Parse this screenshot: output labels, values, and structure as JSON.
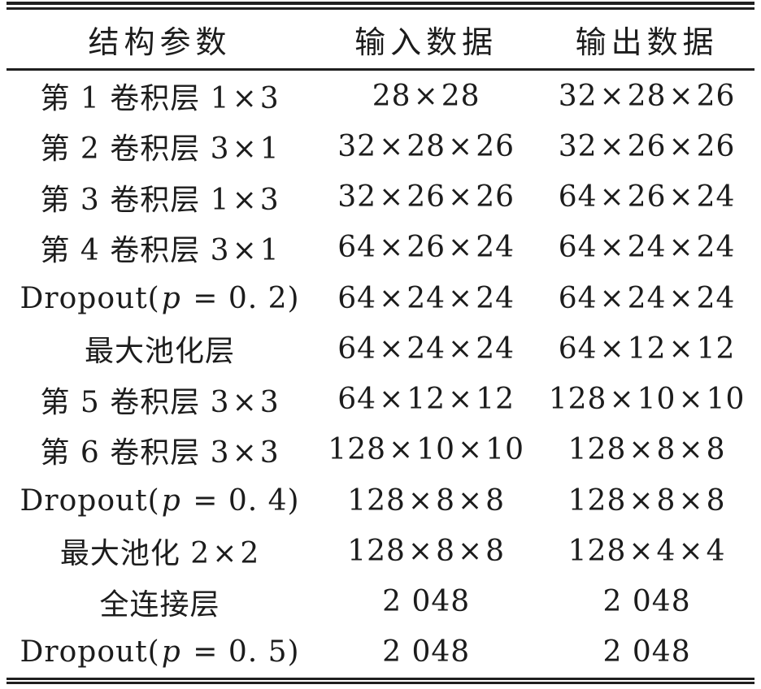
{
  "table": {
    "header": {
      "structure": "结构参数",
      "input": "输入数据",
      "output": "输出数据"
    },
    "rows": [
      {
        "layer": "第 1 卷积层 1×3",
        "input": "28×28",
        "output": "32×28×26"
      },
      {
        "layer": "第 2 卷积层 3×1",
        "input": "32×28×26",
        "output": "32×26×26"
      },
      {
        "layer": "第 3 卷积层 1×3",
        "input": "32×26×26",
        "output": "64×26×24"
      },
      {
        "layer": "第 4 卷积层 3×1",
        "input": "64×26×24",
        "output": "64×24×24"
      },
      {
        "layer": "Dropout(p=0.2)",
        "input": "64×24×24",
        "output": "64×24×24"
      },
      {
        "layer": "最大池化层",
        "input": "64×24×24",
        "output": "64×12×12"
      },
      {
        "layer": "第 5 卷积层 3×3",
        "input": "64×12×12",
        "output": "128×10×10"
      },
      {
        "layer": "第 6 卷积层 3×3",
        "input": "128×10×10",
        "output": "128×8×8"
      },
      {
        "layer": "Dropout(p=0.4)",
        "input": "128×8×8",
        "output": "128×8×8"
      },
      {
        "layer": "最大池化 2×2",
        "input": "128×8×8",
        "output": "128×4×4"
      },
      {
        "layer": "全连接层",
        "input": "2 048",
        "output": "2 048"
      },
      {
        "layer": "Dropout(p=0.5)",
        "input": "2 048",
        "output": "2 048"
      }
    ]
  },
  "colors": {
    "text": "#1c1c1c",
    "rule": "#1f1f1f",
    "background": "#ffffff"
  }
}
